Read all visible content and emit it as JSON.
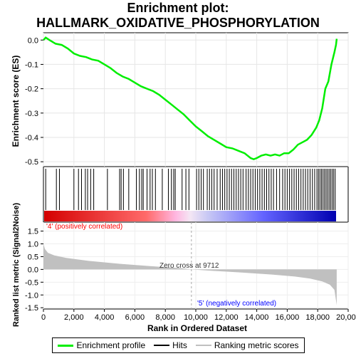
{
  "title_line1": "Enrichment plot:",
  "title_line2": "HALLMARK_OXIDATIVE_PHOSPHORYLATION",
  "chart_data": {
    "type": "line",
    "panels": {
      "es": {
        "ylabel": "Enrichment score (ES)",
        "ylim": [
          -0.52,
          0.03
        ],
        "yticks": [
          "0.0",
          "-0.1",
          "-0.2",
          "-0.3",
          "-0.4",
          "-0.5"
        ],
        "ytick_values": [
          0.0,
          -0.1,
          -0.2,
          -0.3,
          -0.4,
          -0.5
        ],
        "series_color": "#00ee00",
        "points": [
          [
            0,
            0
          ],
          [
            150,
            0.01
          ],
          [
            400,
            0
          ],
          [
            800,
            -0.015
          ],
          [
            1200,
            -0.02
          ],
          [
            1600,
            -0.035
          ],
          [
            2000,
            -0.055
          ],
          [
            2400,
            -0.065
          ],
          [
            2800,
            -0.07
          ],
          [
            3200,
            -0.08
          ],
          [
            3600,
            -0.085
          ],
          [
            4000,
            -0.1
          ],
          [
            4400,
            -0.115
          ],
          [
            4800,
            -0.135
          ],
          [
            5200,
            -0.15
          ],
          [
            5600,
            -0.16
          ],
          [
            6000,
            -0.175
          ],
          [
            6400,
            -0.19
          ],
          [
            6800,
            -0.2
          ],
          [
            7200,
            -0.21
          ],
          [
            7600,
            -0.225
          ],
          [
            8000,
            -0.245
          ],
          [
            8400,
            -0.265
          ],
          [
            8800,
            -0.285
          ],
          [
            9200,
            -0.305
          ],
          [
            9600,
            -0.33
          ],
          [
            10000,
            -0.355
          ],
          [
            10400,
            -0.375
          ],
          [
            10800,
            -0.395
          ],
          [
            11200,
            -0.41
          ],
          [
            11600,
            -0.425
          ],
          [
            12000,
            -0.44
          ],
          [
            12400,
            -0.445
          ],
          [
            12800,
            -0.455
          ],
          [
            13200,
            -0.465
          ],
          [
            13600,
            -0.485
          ],
          [
            13800,
            -0.49
          ],
          [
            14000,
            -0.485
          ],
          [
            14300,
            -0.475
          ],
          [
            14600,
            -0.47
          ],
          [
            14900,
            -0.475
          ],
          [
            15200,
            -0.47
          ],
          [
            15500,
            -0.475
          ],
          [
            15800,
            -0.465
          ],
          [
            16100,
            -0.465
          ],
          [
            16400,
            -0.45
          ],
          [
            16700,
            -0.43
          ],
          [
            17000,
            -0.42
          ],
          [
            17300,
            -0.41
          ],
          [
            17600,
            -0.39
          ],
          [
            17900,
            -0.36
          ],
          [
            18100,
            -0.33
          ],
          [
            18300,
            -0.28
          ],
          [
            18500,
            -0.2
          ],
          [
            18700,
            -0.17
          ],
          [
            18900,
            -0.1
          ],
          [
            19100,
            -0.05
          ],
          [
            19200,
            -0.02
          ],
          [
            19250,
            0.005
          ]
        ]
      },
      "hits": {
        "positions": [
          150,
          850,
          1050,
          2000,
          2300,
          2500,
          2750,
          2900,
          3100,
          3300,
          4200,
          5000,
          5100,
          5250,
          5600,
          6100,
          6300,
          6450,
          6550,
          6800,
          7000,
          7150,
          7350,
          7800,
          8200,
          8400,
          8550,
          8650,
          9100,
          9350,
          9550,
          10050,
          10200,
          10350,
          10500,
          10750,
          10900,
          11050,
          11200,
          11400,
          11600,
          11750,
          11900,
          12050,
          12200,
          12350,
          12500,
          12650,
          12800,
          12950,
          13100,
          13300,
          13450,
          13600,
          13750,
          13900,
          14050,
          14200,
          14350,
          14500,
          14650,
          14800,
          14950,
          15100,
          15300,
          15500,
          15700,
          15850,
          16000,
          16150,
          16300,
          16450,
          16600,
          16750,
          16900,
          17050,
          17200,
          17350,
          17500,
          17650,
          17800,
          17950,
          18050,
          18150,
          18250,
          18350,
          18450,
          18550,
          18650,
          18750,
          18850,
          18950,
          19050,
          19150
        ]
      },
      "metric": {
        "ylabel": "Ranked list metric (Signal2Noise)",
        "ylim": [
          -1.55,
          1.85
        ],
        "yticks": [
          "1.5",
          "1.0",
          "0.5",
          "0.0",
          "-0.5",
          "-1.0",
          "-1.5"
        ],
        "ytick_values": [
          1.5,
          1.0,
          0.5,
          0.0,
          -0.5,
          -1.0,
          -1.5
        ],
        "xlabel": "Rank in Ordered Dataset",
        "xlim": [
          0,
          20000
        ],
        "xticks": [
          "0",
          "2,000",
          "4,000",
          "6,000",
          "8,000",
          "10,000",
          "12,000",
          "14,000",
          "16,000",
          "18,000",
          "20,000"
        ],
        "xtick_values": [
          0,
          2000,
          4000,
          6000,
          8000,
          10000,
          12000,
          14000,
          16000,
          18000,
          20000
        ],
        "fill_color": "#c0c0c0",
        "points": [
          [
            0,
            1.0
          ],
          [
            100,
            0.8
          ],
          [
            300,
            0.65
          ],
          [
            700,
            0.55
          ],
          [
            1500,
            0.45
          ],
          [
            3000,
            0.33
          ],
          [
            5000,
            0.22
          ],
          [
            7000,
            0.13
          ],
          [
            9000,
            0.05
          ],
          [
            9712,
            0.0
          ],
          [
            11000,
            -0.05
          ],
          [
            13000,
            -0.12
          ],
          [
            15000,
            -0.2
          ],
          [
            16500,
            -0.28
          ],
          [
            17500,
            -0.36
          ],
          [
            18300,
            -0.47
          ],
          [
            18800,
            -0.6
          ],
          [
            19100,
            -0.8
          ],
          [
            19250,
            -1.4
          ]
        ],
        "zero_cross_label": "Zero cross at 9712",
        "zero_cross": 9712,
        "pos_label": "'4' (positively correlated)",
        "neg_label": "'5' (negatively correlated)",
        "pos_color": "#ff0000",
        "neg_color": "#0000ff"
      }
    },
    "n_genes": 19250
  },
  "legend": {
    "enrichment_label": "Enrichment profile",
    "hits_label": "Hits",
    "ranking_label": "Ranking metric scores"
  }
}
